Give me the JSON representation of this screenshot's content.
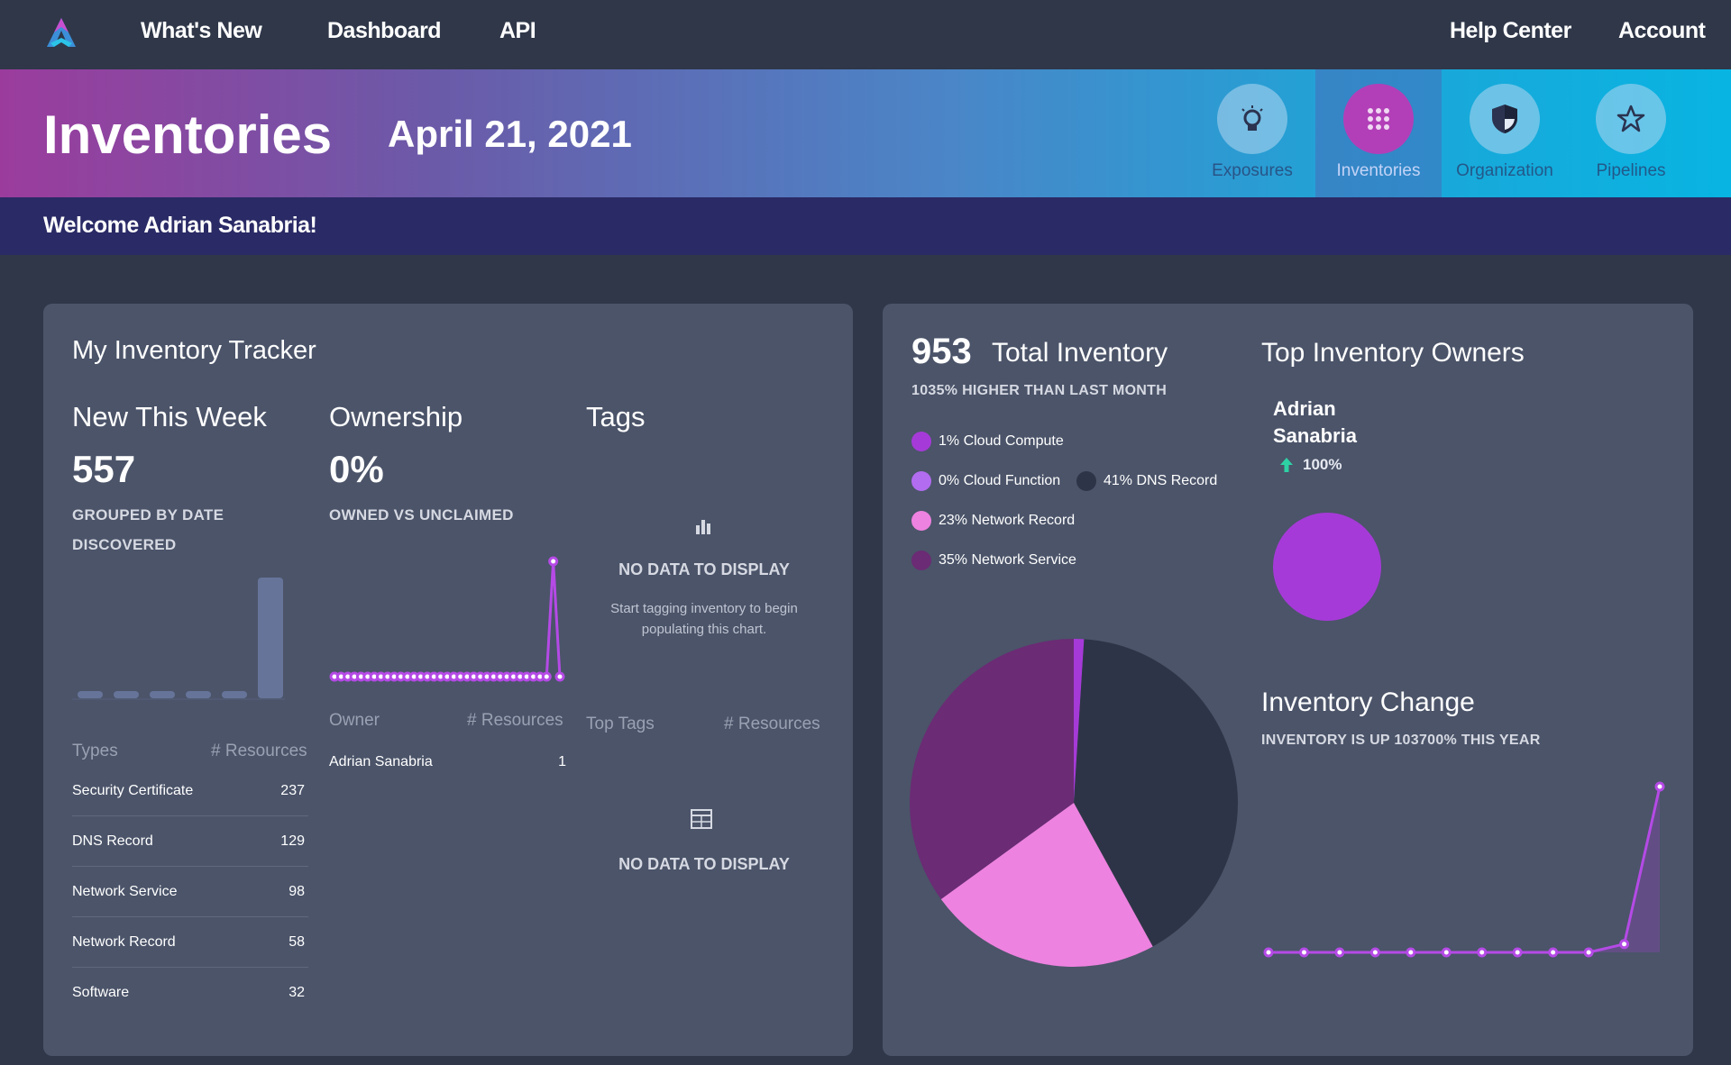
{
  "nav": {
    "items": [
      "What's New",
      "Dashboard",
      "API"
    ],
    "right": [
      "Help Center",
      "Account"
    ]
  },
  "banner": {
    "title": "Inventories",
    "date": "April 21, 2021",
    "quick_links": [
      {
        "label": "Exposures",
        "icon": "lightbulb-icon",
        "active": false
      },
      {
        "label": "Inventories",
        "icon": "grid-icon",
        "active": true
      },
      {
        "label": "Organization",
        "icon": "shield-icon",
        "active": false
      },
      {
        "label": "Pipelines",
        "icon": "star-icon",
        "active": false
      }
    ]
  },
  "welcome": "Welcome Adrian Sanabria!",
  "tracker": {
    "title": "My Inventory Tracker",
    "new_this_week": {
      "heading": "New This Week",
      "value": "557",
      "caption_line1": "GROUPED BY DATE",
      "caption_line2": "DISCOVERED"
    },
    "ownership": {
      "heading": "Ownership",
      "value": "0%",
      "caption": "OWNED VS UNCLAIMED",
      "col_owner": "Owner",
      "col_resources": "# Resources",
      "rows": [
        {
          "owner": "Adrian Sanabria",
          "resources": "1"
        }
      ]
    },
    "tags": {
      "heading": "Tags",
      "nodata": "NO DATA TO DISPLAY",
      "hint_line1": "Start tagging inventory to begin",
      "hint_line2": "populating this chart.",
      "col_tags": "Top Tags",
      "col_resources": "# Resources",
      "nodata2": "NO DATA TO DISPLAY"
    },
    "types": {
      "col_type": "Types",
      "col_resources": "# Resources",
      "rows": [
        {
          "type": "Security Certificate",
          "count": "237"
        },
        {
          "type": "DNS Record",
          "count": "129"
        },
        {
          "type": "Network Service",
          "count": "98"
        },
        {
          "type": "Network Record",
          "count": "58"
        },
        {
          "type": "Software",
          "count": "32"
        }
      ]
    }
  },
  "summary": {
    "total": "953",
    "total_label": "Total Inventory",
    "total_caption": "1035% HIGHER THAN LAST MONTH",
    "legend": [
      {
        "label": "1% Cloud Compute",
        "color": "#a63ad8"
      },
      {
        "label": "0% Cloud Function",
        "color": "#b26cf0"
      },
      {
        "label": "41% DNS Record",
        "color": "#2e3447"
      },
      {
        "label": "23% Network Record",
        "color": "#ee82e0"
      },
      {
        "label": "35% Network Service",
        "color": "#6b2b75"
      }
    ],
    "owners_title": "Top Inventory Owners",
    "owner_name_line1": "Adrian",
    "owner_name_line2": "Sanabria",
    "owner_pct": "100%",
    "owner_color": "#a63ad8",
    "change_title": "Inventory Change",
    "change_caption": "INVENTORY IS UP 103700% THIS YEAR"
  },
  "chart_data": [
    {
      "type": "bar",
      "title": "New This Week",
      "categories": [
        "1",
        "2",
        "3",
        "4",
        "5",
        "6"
      ],
      "values": [
        2,
        0,
        0,
        0,
        0,
        100
      ]
    },
    {
      "type": "line",
      "title": "Ownership",
      "x": [
        1,
        2,
        3,
        4,
        5,
        6,
        7,
        8,
        9,
        10,
        11,
        12,
        13,
        14,
        15,
        16,
        17,
        18,
        19,
        20,
        21,
        22,
        23,
        24,
        25,
        26,
        27,
        28,
        29,
        30,
        31,
        32,
        33,
        34,
        35
      ],
      "values": [
        0,
        0,
        0,
        0,
        0,
        0,
        0,
        0,
        0,
        0,
        0,
        0,
        0,
        0,
        0,
        0,
        0,
        0,
        0,
        0,
        0,
        0,
        0,
        0,
        0,
        0,
        0,
        0,
        0,
        0,
        0,
        0,
        0,
        100,
        0
      ]
    },
    {
      "type": "pie",
      "title": "Total Inventory",
      "categories": [
        "Cloud Compute",
        "Cloud Function",
        "DNS Record",
        "Network Record",
        "Network Service"
      ],
      "values": [
        1,
        0,
        41,
        23,
        35
      ],
      "colors": [
        "#a63ad8",
        "#b26cf0",
        "#2e3447",
        "#ee82e0",
        "#6b2b75"
      ]
    },
    {
      "type": "pie",
      "title": "Top Inventory Owners",
      "categories": [
        "Adrian Sanabria"
      ],
      "values": [
        100
      ],
      "colors": [
        "#a63ad8"
      ]
    },
    {
      "type": "line",
      "title": "Inventory Change",
      "x": [
        1,
        2,
        3,
        4,
        5,
        6,
        7,
        8,
        9,
        10,
        11,
        12
      ],
      "values": [
        0,
        0,
        0,
        0,
        0,
        0,
        0,
        0,
        0,
        0,
        5,
        100
      ]
    }
  ]
}
